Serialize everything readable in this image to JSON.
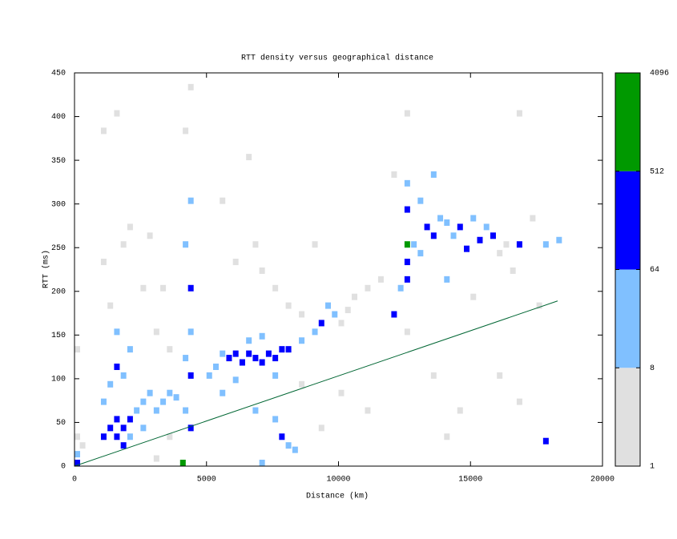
{
  "chart_data": {
    "type": "heatmap",
    "title": "RTT density versus geographical distance",
    "xlabel": "Distance (km)",
    "ylabel": "RTT (ms)",
    "xlim": [
      0,
      20000
    ],
    "xticks": [
      0,
      5000,
      10000,
      15000,
      20000
    ],
    "ylim": [
      0,
      450
    ],
    "yticks": [
      0,
      50,
      100,
      150,
      200,
      250,
      300,
      350,
      400,
      450
    ],
    "colorbar": {
      "log": true,
      "ticks": [
        1,
        8,
        64,
        512,
        4096
      ],
      "colors": [
        "#e0e0e0",
        "#80c0ff",
        "#0000ff",
        "#009900"
      ]
    },
    "line": {
      "color": "#006633",
      "x": [
        0,
        18300
      ],
      "y": [
        0,
        189
      ]
    },
    "cells": [
      [
        0,
        0,
        80
      ],
      [
        0,
        10,
        20
      ],
      [
        0,
        30,
        4
      ],
      [
        0,
        130,
        3
      ],
      [
        200,
        20,
        5
      ],
      [
        1000,
        30,
        90
      ],
      [
        1250,
        40,
        150
      ],
      [
        1500,
        30,
        200
      ],
      [
        1500,
        50,
        120
      ],
      [
        1750,
        40,
        180
      ],
      [
        1750,
        20,
        70
      ],
      [
        2000,
        50,
        90
      ],
      [
        2000,
        30,
        40
      ],
      [
        2250,
        60,
        30
      ],
      [
        2500,
        70,
        20
      ],
      [
        1500,
        110,
        80
      ],
      [
        1250,
        90,
        25
      ],
      [
        1750,
        100,
        30
      ],
      [
        2000,
        130,
        20
      ],
      [
        1500,
        150,
        15
      ],
      [
        1000,
        70,
        15
      ],
      [
        2500,
        40,
        10
      ],
      [
        2750,
        80,
        12
      ],
      [
        3000,
        60,
        10
      ],
      [
        3250,
        70,
        15
      ],
      [
        3500,
        80,
        20
      ],
      [
        3750,
        75,
        25
      ],
      [
        1750,
        250,
        3
      ],
      [
        2000,
        270,
        3
      ],
      [
        1250,
        180,
        3
      ],
      [
        2500,
        200,
        3
      ],
      [
        3000,
        150,
        3
      ],
      [
        3500,
        130,
        3
      ],
      [
        1000,
        230,
        2
      ],
      [
        2750,
        260,
        2
      ],
      [
        1500,
        400,
        1
      ],
      [
        1000,
        380,
        1
      ],
      [
        3250,
        200,
        2
      ],
      [
        4100,
        60,
        30
      ],
      [
        4100,
        120,
        20
      ],
      [
        4100,
        250,
        15
      ],
      [
        4300,
        100,
        100
      ],
      [
        4300,
        40,
        70
      ],
      [
        4300,
        200,
        80
      ],
      [
        4300,
        150,
        40
      ],
      [
        4300,
        300,
        15
      ],
      [
        4000,
        0,
        600
      ],
      [
        4100,
        380,
        2
      ],
      [
        4300,
        430,
        2
      ],
      [
        5250,
        110,
        20
      ],
      [
        5500,
        125,
        30
      ],
      [
        5750,
        120,
        80
      ],
      [
        6000,
        125,
        100
      ],
      [
        6250,
        115,
        120
      ],
      [
        6500,
        125,
        150
      ],
      [
        6750,
        120,
        200
      ],
      [
        7000,
        115,
        180
      ],
      [
        7250,
        125,
        200
      ],
      [
        7500,
        120,
        150
      ],
      [
        7750,
        130,
        120
      ],
      [
        8000,
        130,
        80
      ],
      [
        6500,
        140,
        30
      ],
      [
        7000,
        145,
        30
      ],
      [
        7500,
        100,
        25
      ],
      [
        6000,
        95,
        20
      ],
      [
        5500,
        80,
        15
      ],
      [
        5000,
        100,
        10
      ],
      [
        6750,
        60,
        15
      ],
      [
        7500,
        50,
        25
      ],
      [
        7750,
        30,
        70
      ],
      [
        8000,
        20,
        20
      ],
      [
        8250,
        15,
        15
      ],
      [
        7000,
        0,
        40
      ],
      [
        6000,
        230,
        3
      ],
      [
        6750,
        250,
        4
      ],
      [
        7000,
        220,
        3
      ],
      [
        7500,
        200,
        4
      ],
      [
        8000,
        180,
        5
      ],
      [
        8500,
        170,
        6
      ],
      [
        8500,
        140,
        20
      ],
      [
        9000,
        150,
        15
      ],
      [
        9250,
        160,
        80
      ],
      [
        9500,
        180,
        10
      ],
      [
        9750,
        170,
        8
      ],
      [
        10000,
        160,
        6
      ],
      [
        10250,
        175,
        5
      ],
      [
        10500,
        190,
        4
      ],
      [
        11000,
        200,
        5
      ],
      [
        11500,
        210,
        4
      ],
      [
        5500,
        300,
        2
      ],
      [
        6500,
        350,
        1
      ],
      [
        9000,
        250,
        2
      ],
      [
        9250,
        40,
        2
      ],
      [
        10000,
        80,
        3
      ],
      [
        11000,
        60,
        2
      ],
      [
        8500,
        90,
        3
      ],
      [
        3500,
        30,
        2
      ],
      [
        3000,
        5,
        2
      ],
      [
        12000,
        170,
        100
      ],
      [
        12250,
        200,
        20
      ],
      [
        12500,
        230,
        150
      ],
      [
        12500,
        250,
        700
      ],
      [
        12500,
        290,
        100
      ],
      [
        12500,
        210,
        80
      ],
      [
        12750,
        250,
        30
      ],
      [
        13000,
        240,
        25
      ],
      [
        13250,
        270,
        70
      ],
      [
        13500,
        260,
        80
      ],
      [
        13750,
        280,
        30
      ],
      [
        14000,
        275,
        25
      ],
      [
        14250,
        260,
        30
      ],
      [
        14500,
        270,
        80
      ],
      [
        14750,
        245,
        100
      ],
      [
        15000,
        280,
        30
      ],
      [
        15250,
        255,
        80
      ],
      [
        15500,
        270,
        30
      ],
      [
        15750,
        260,
        80
      ],
      [
        16000,
        240,
        6
      ],
      [
        16250,
        250,
        5
      ],
      [
        16500,
        220,
        5
      ],
      [
        16750,
        250,
        90
      ],
      [
        17250,
        280,
        4
      ],
      [
        17750,
        250,
        20
      ],
      [
        18250,
        255,
        10
      ],
      [
        13500,
        330,
        15
      ],
      [
        12500,
        320,
        10
      ],
      [
        13000,
        300,
        12
      ],
      [
        14000,
        210,
        10
      ],
      [
        15000,
        190,
        6
      ],
      [
        12500,
        400,
        2
      ],
      [
        12500,
        150,
        4
      ],
      [
        13500,
        100,
        3
      ],
      [
        14500,
        60,
        3
      ],
      [
        16000,
        100,
        3
      ],
      [
        16750,
        70,
        2
      ],
      [
        17500,
        180,
        2
      ],
      [
        17750,
        25,
        80
      ],
      [
        16750,
        400,
        1
      ],
      [
        14000,
        30,
        2
      ],
      [
        12000,
        330,
        2
      ]
    ]
  }
}
